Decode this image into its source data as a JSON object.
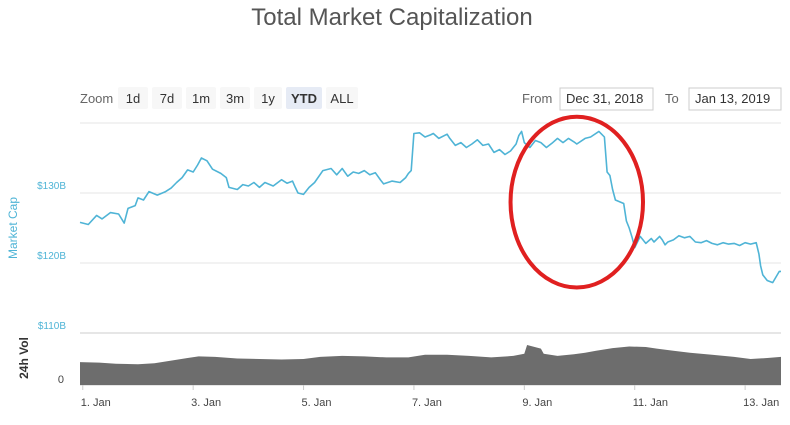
{
  "chart_data": {
    "type": "line",
    "title": "Total Market Capitalization",
    "ylabel": "Market Cap",
    "y2label": "24h Vol",
    "zoom_label": "Zoom",
    "zoom_buttons": [
      "1d",
      "7d",
      "1m",
      "3m",
      "1y",
      "YTD",
      "ALL"
    ],
    "zoom_active": "YTD",
    "range": {
      "from_label": "From",
      "from_value": "Dec 31, 2018",
      "to_label": "To",
      "to_value": "Jan 13, 2019"
    },
    "x_unit": "days since Jan 1, 2019",
    "x_ticks": [
      {
        "x": 0,
        "label": "1. Jan"
      },
      {
        "x": 2,
        "label": "3. Jan"
      },
      {
        "x": 4,
        "label": "5. Jan"
      },
      {
        "x": 6,
        "label": "7. Jan"
      },
      {
        "x": 8,
        "label": "9. Jan"
      },
      {
        "x": 10,
        "label": "11. Jan"
      },
      {
        "x": 12,
        "label": "13. Jan"
      }
    ],
    "xlim": [
      -0.05,
      12.65
    ],
    "y_ticks": [
      {
        "y": 110,
        "label": "$110B"
      },
      {
        "y": 120,
        "label": "$120B"
      },
      {
        "y": 130,
        "label": "$130B"
      }
    ],
    "ylim": [
      110,
      140
    ],
    "vol_ticks": [
      {
        "y": 0,
        "label": "0"
      }
    ],
    "annotation": {
      "type": "ellipse",
      "color": "#e02020",
      "center_x": 8.95,
      "center_y": 128.7,
      "rx_days": 1.2,
      "ry": 12.2
    },
    "series": [
      {
        "color": "#4fb4d6",
        "points": [
          [
            -0.05,
            125.8
          ],
          [
            0.1,
            125.5
          ],
          [
            0.25,
            126.8
          ],
          [
            0.35,
            126.3
          ],
          [
            0.5,
            127.2
          ],
          [
            0.65,
            127.0
          ],
          [
            0.75,
            125.7
          ],
          [
            0.82,
            127.8
          ],
          [
            0.95,
            128.2
          ],
          [
            1.0,
            129.3
          ],
          [
            1.1,
            129.0
          ],
          [
            1.2,
            130.2
          ],
          [
            1.35,
            129.7
          ],
          [
            1.5,
            130.2
          ],
          [
            1.6,
            130.7
          ],
          [
            1.7,
            131.5
          ],
          [
            1.8,
            132.2
          ],
          [
            1.9,
            133.3
          ],
          [
            2.0,
            133.0
          ],
          [
            2.08,
            134.0
          ],
          [
            2.15,
            135.0
          ],
          [
            2.25,
            134.6
          ],
          [
            2.35,
            133.4
          ],
          [
            2.5,
            132.8
          ],
          [
            2.6,
            132.2
          ],
          [
            2.65,
            130.8
          ],
          [
            2.8,
            130.5
          ],
          [
            2.9,
            131.2
          ],
          [
            3.0,
            131.0
          ],
          [
            3.1,
            131.5
          ],
          [
            3.2,
            130.8
          ],
          [
            3.3,
            131.5
          ],
          [
            3.45,
            131.0
          ],
          [
            3.6,
            131.9
          ],
          [
            3.7,
            131.4
          ],
          [
            3.8,
            131.7
          ],
          [
            3.85,
            130.8
          ],
          [
            3.9,
            130.0
          ],
          [
            4.0,
            129.8
          ],
          [
            4.1,
            130.8
          ],
          [
            4.2,
            131.5
          ],
          [
            4.35,
            133.2
          ],
          [
            4.5,
            133.5
          ],
          [
            4.6,
            132.6
          ],
          [
            4.7,
            133.5
          ],
          [
            4.8,
            132.4
          ],
          [
            4.9,
            133.0
          ],
          [
            5.0,
            132.8
          ],
          [
            5.1,
            133.2
          ],
          [
            5.2,
            132.6
          ],
          [
            5.3,
            132.9
          ],
          [
            5.4,
            131.8
          ],
          [
            5.45,
            131.3
          ],
          [
            5.6,
            131.7
          ],
          [
            5.75,
            131.5
          ],
          [
            5.85,
            132.2
          ],
          [
            5.9,
            132.8
          ],
          [
            5.95,
            133.2
          ],
          [
            6.0,
            138.5
          ],
          [
            6.1,
            138.6
          ],
          [
            6.2,
            138.0
          ],
          [
            6.3,
            138.3
          ],
          [
            6.35,
            138.5
          ],
          [
            6.45,
            137.8
          ],
          [
            6.6,
            138.4
          ],
          [
            6.65,
            137.8
          ],
          [
            6.75,
            136.8
          ],
          [
            6.85,
            137.2
          ],
          [
            6.95,
            136.5
          ],
          [
            7.05,
            137.0
          ],
          [
            7.15,
            137.6
          ],
          [
            7.25,
            136.8
          ],
          [
            7.35,
            137.0
          ],
          [
            7.45,
            135.8
          ],
          [
            7.55,
            136.2
          ],
          [
            7.65,
            135.5
          ],
          [
            7.75,
            136.0
          ],
          [
            7.85,
            137.0
          ],
          [
            7.9,
            138.2
          ],
          [
            7.95,
            138.8
          ],
          [
            8.0,
            137.2
          ],
          [
            8.1,
            136.5
          ],
          [
            8.2,
            137.5
          ],
          [
            8.3,
            137.2
          ],
          [
            8.4,
            136.5
          ],
          [
            8.5,
            137.1
          ],
          [
            8.6,
            137.8
          ],
          [
            8.7,
            137.2
          ],
          [
            8.8,
            137.8
          ],
          [
            8.9,
            137.3
          ],
          [
            8.95,
            137.0
          ],
          [
            9.1,
            137.8
          ],
          [
            9.2,
            138.0
          ],
          [
            9.35,
            138.8
          ],
          [
            9.45,
            138.0
          ],
          [
            9.5,
            133.0
          ],
          [
            9.55,
            132.5
          ],
          [
            9.6,
            130.5
          ],
          [
            9.65,
            129.0
          ],
          [
            9.8,
            128.5
          ],
          [
            9.85,
            126.0
          ],
          [
            9.9,
            125.0
          ],
          [
            9.95,
            123.7
          ],
          [
            10.0,
            122.2
          ],
          [
            10.1,
            123.8
          ],
          [
            10.2,
            122.8
          ],
          [
            10.3,
            123.5
          ],
          [
            10.35,
            123.0
          ],
          [
            10.45,
            123.8
          ],
          [
            10.5,
            123.3
          ],
          [
            10.55,
            122.6
          ],
          [
            10.6,
            123.0
          ],
          [
            10.7,
            123.3
          ],
          [
            10.8,
            123.9
          ],
          [
            10.9,
            123.6
          ],
          [
            11.0,
            123.8
          ],
          [
            11.1,
            123.0
          ],
          [
            11.2,
            122.9
          ],
          [
            11.3,
            123.2
          ],
          [
            11.4,
            122.8
          ],
          [
            11.5,
            122.6
          ],
          [
            11.6,
            122.9
          ],
          [
            11.7,
            122.7
          ],
          [
            11.8,
            122.8
          ],
          [
            11.9,
            122.5
          ],
          [
            12.0,
            122.9
          ],
          [
            12.1,
            122.7
          ],
          [
            12.2,
            122.9
          ],
          [
            12.25,
            121.3
          ],
          [
            12.28,
            119.6
          ],
          [
            12.32,
            118.3
          ],
          [
            12.4,
            117.5
          ],
          [
            12.5,
            117.2
          ],
          [
            12.56,
            118.0
          ],
          [
            12.62,
            118.8
          ],
          [
            12.65,
            118.8
          ]
        ]
      },
      {
        "name": "24h Vol",
        "color": "#6d6d6d",
        "type": "area",
        "points": [
          [
            -0.05,
            44
          ],
          [
            0.3,
            43
          ],
          [
            0.6,
            41
          ],
          [
            1.0,
            40
          ],
          [
            1.3,
            42
          ],
          [
            1.6,
            47
          ],
          [
            1.9,
            52
          ],
          [
            2.1,
            55
          ],
          [
            2.4,
            54
          ],
          [
            2.8,
            51
          ],
          [
            3.2,
            50
          ],
          [
            3.6,
            49
          ],
          [
            4.0,
            50
          ],
          [
            4.3,
            54
          ],
          [
            4.7,
            56
          ],
          [
            5.1,
            55
          ],
          [
            5.5,
            53
          ],
          [
            5.9,
            53
          ],
          [
            6.2,
            58
          ],
          [
            6.6,
            58
          ],
          [
            7.0,
            56
          ],
          [
            7.4,
            53
          ],
          [
            7.8,
            56
          ],
          [
            8.0,
            60
          ],
          [
            8.05,
            77
          ],
          [
            8.3,
            70
          ],
          [
            8.35,
            60
          ],
          [
            8.6,
            56
          ],
          [
            8.9,
            59
          ],
          [
            9.1,
            62
          ],
          [
            9.3,
            66
          ],
          [
            9.6,
            71
          ],
          [
            9.9,
            74
          ],
          [
            10.2,
            73
          ],
          [
            10.4,
            70
          ],
          [
            10.7,
            66
          ],
          [
            11.0,
            62
          ],
          [
            11.4,
            58
          ],
          [
            11.8,
            54
          ],
          [
            12.1,
            50
          ],
          [
            12.4,
            52
          ],
          [
            12.65,
            54
          ]
        ]
      }
    ]
  }
}
